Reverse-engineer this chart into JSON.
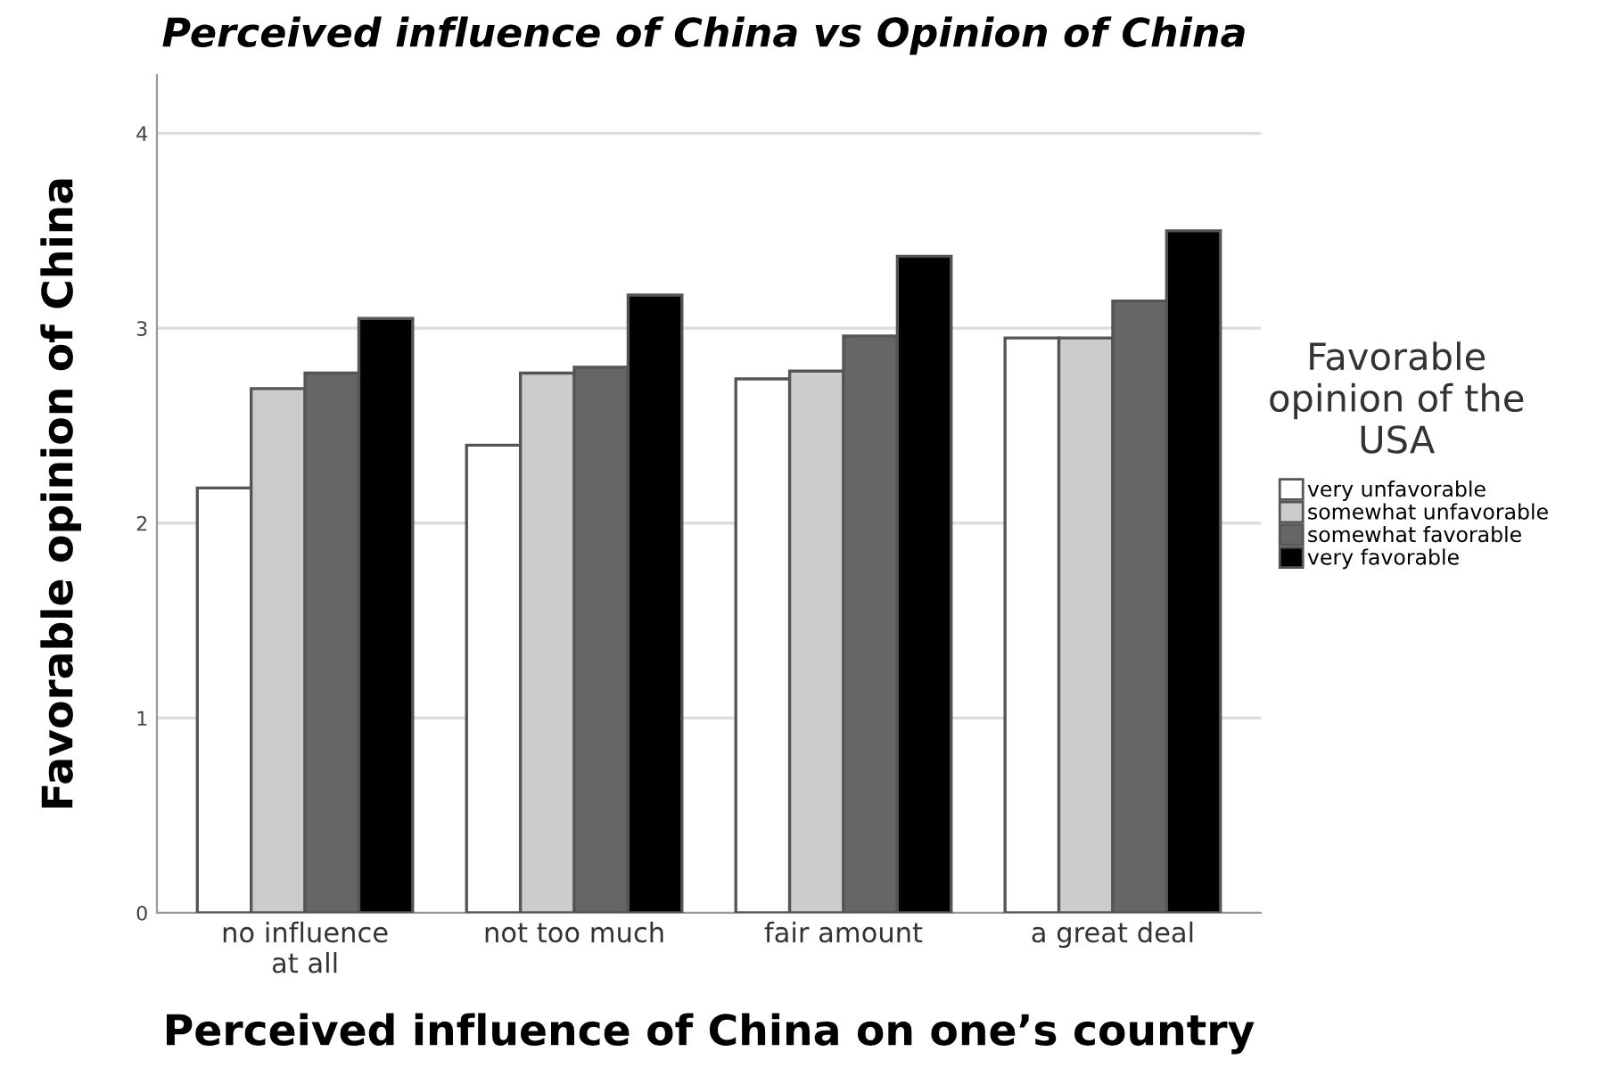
{
  "chart_data": {
    "type": "bar",
    "title": "Perceived influence of China vs Opinion of China",
    "xlabel": "Perceived influence of China on one’s country",
    "ylabel": "Favorable opinion of China",
    "legend_title": "Favorable opinion of the USA",
    "categories": [
      "no influence\nat all",
      "not too much",
      "fair amount",
      "a great deal"
    ],
    "series": [
      {
        "name": "very unfavorable",
        "color": "#ffffff",
        "values": [
          2.18,
          2.4,
          2.74,
          2.95
        ]
      },
      {
        "name": "somewhat unfavorable",
        "color": "#cccccc",
        "values": [
          2.69,
          2.77,
          2.78,
          2.95
        ]
      },
      {
        "name": "somewhat favorable",
        "color": "#666666",
        "values": [
          2.77,
          2.8,
          2.96,
          3.14
        ]
      },
      {
        "name": "very favorable",
        "color": "#000000",
        "values": [
          3.05,
          3.17,
          3.37,
          3.5
        ]
      }
    ],
    "ylim": [
      0,
      4.3
    ],
    "yticks": [
      0,
      1,
      2,
      3,
      4
    ],
    "grid": "y",
    "legend": "right"
  }
}
